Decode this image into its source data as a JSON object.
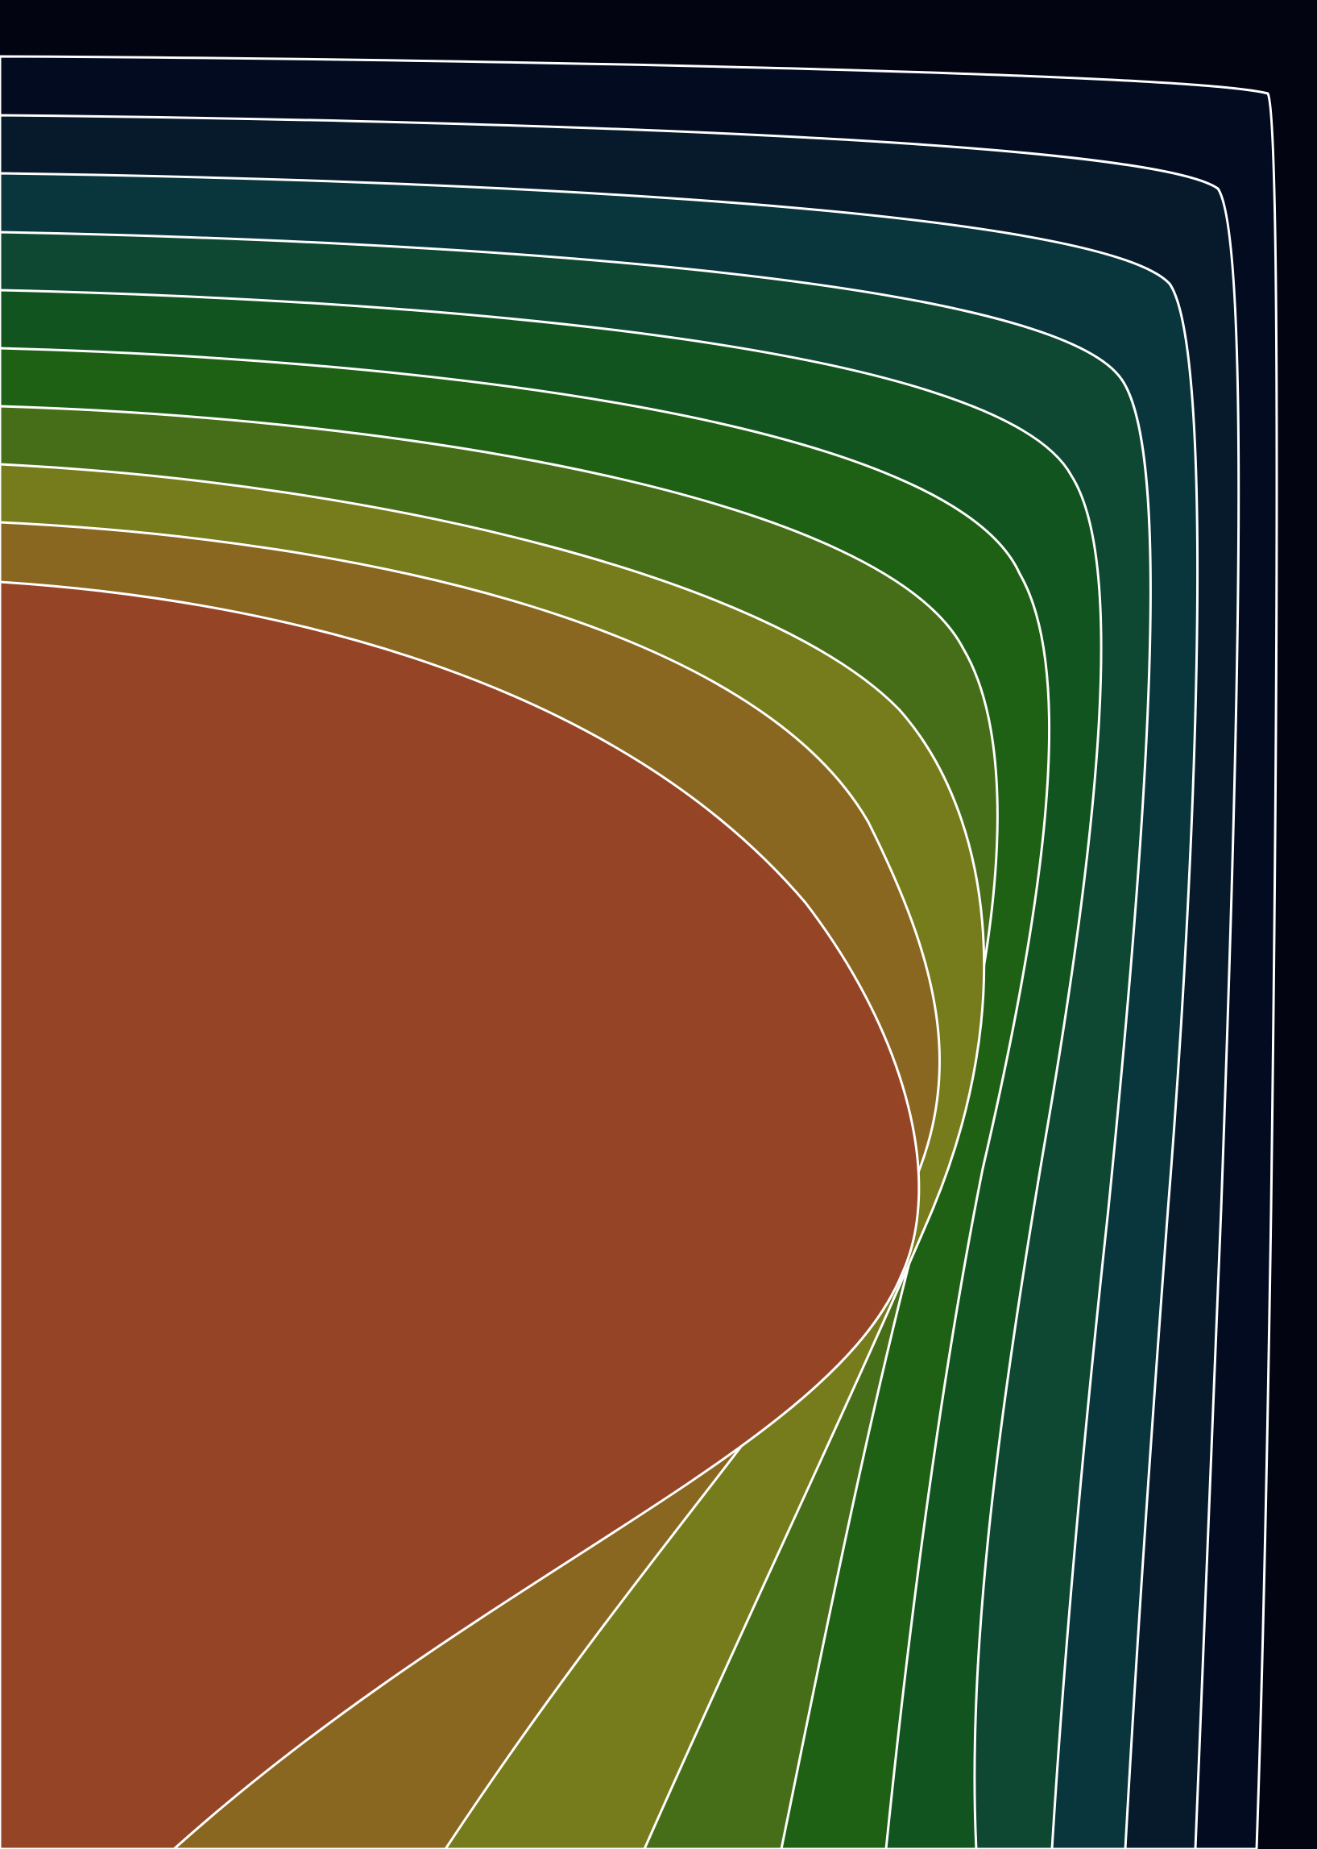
{
  "artwork": {
    "kind": "contour-bands",
    "background_color": "#020412",
    "contour_line_color": "#ffffff",
    "bands": [
      {
        "id": "band-01",
        "color": "#020b20"
      },
      {
        "id": "band-02",
        "color": "#061a2c"
      },
      {
        "id": "band-03",
        "color": "#09353d"
      },
      {
        "id": "band-04",
        "color": "#0e4732"
      },
      {
        "id": "band-05",
        "color": "#125420"
      },
      {
        "id": "band-06",
        "color": "#1f6114"
      },
      {
        "id": "band-07",
        "color": "#466e18"
      },
      {
        "id": "band-08",
        "color": "#767c1b"
      },
      {
        "id": "band-09",
        "color": "#8a6720"
      },
      {
        "id": "band-10",
        "color": "#954525"
      }
    ]
  }
}
